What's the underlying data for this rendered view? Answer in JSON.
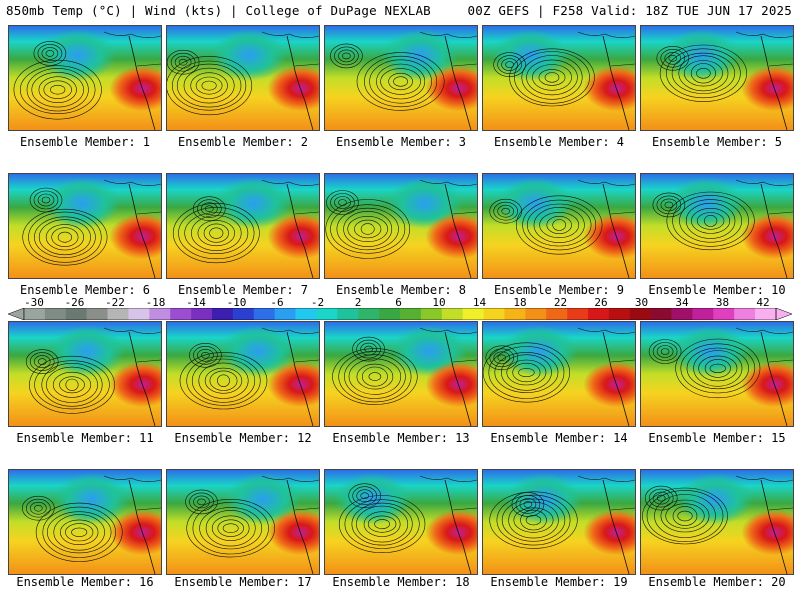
{
  "header": {
    "left_title": "850mb Temp (°C) | Wind (kts) | College of DuPage NEXLAB",
    "right_title": "00Z GEFS | F258 Valid: 18Z TUE JUN 17 2025"
  },
  "caption_prefix": "Ensemble Member:",
  "members": [
    {
      "label": "Ensemble Member: 1"
    },
    {
      "label": "Ensemble Member: 2"
    },
    {
      "label": "Ensemble Member: 3"
    },
    {
      "label": "Ensemble Member: 4"
    },
    {
      "label": "Ensemble Member: 5"
    },
    {
      "label": "Ensemble Member: 6"
    },
    {
      "label": "Ensemble Member: 7"
    },
    {
      "label": "Ensemble Member: 8"
    },
    {
      "label": "Ensemble Member: 9"
    },
    {
      "label": "Ensemble Member: 10"
    },
    {
      "label": "Ensemble Member: 11"
    },
    {
      "label": "Ensemble Member: 12"
    },
    {
      "label": "Ensemble Member: 13"
    },
    {
      "label": "Ensemble Member: 14"
    },
    {
      "label": "Ensemble Member: 15"
    },
    {
      "label": "Ensemble Member: 16"
    },
    {
      "label": "Ensemble Member: 17"
    },
    {
      "label": "Ensemble Member: 18"
    },
    {
      "label": "Ensemble Member: 19"
    },
    {
      "label": "Ensemble Member: 20"
    }
  ],
  "colorbar": {
    "tick_labels": [
      "-30",
      "-26",
      "-22",
      "-18",
      "-14",
      "-10",
      "-6",
      "-2",
      "2",
      "6",
      "10",
      "14",
      "18",
      "22",
      "26",
      "30",
      "34",
      "38",
      "42"
    ],
    "colors": [
      "#9aa5a0",
      "#7f8c86",
      "#6a7a72",
      "#8a8f8a",
      "#b5b5b5",
      "#d7c4e8",
      "#c08ee0",
      "#9b4fd0",
      "#7b2fc0",
      "#3c1fb0",
      "#2b3fd0",
      "#2c6fe8",
      "#2a9ef0",
      "#22c8f0",
      "#1ad5c8",
      "#1fc29a",
      "#2eb56a",
      "#3aa842",
      "#56b032",
      "#8ac82a",
      "#c3de28",
      "#f0f02a",
      "#f5d420",
      "#f5b318",
      "#f39018",
      "#ef6818",
      "#e83c18",
      "#d81818",
      "#b81010",
      "#9a0a10",
      "#8a0a30",
      "#a0106a",
      "#c0209a",
      "#e040c0",
      "#f080e0",
      "#f8b0f0"
    ]
  }
}
